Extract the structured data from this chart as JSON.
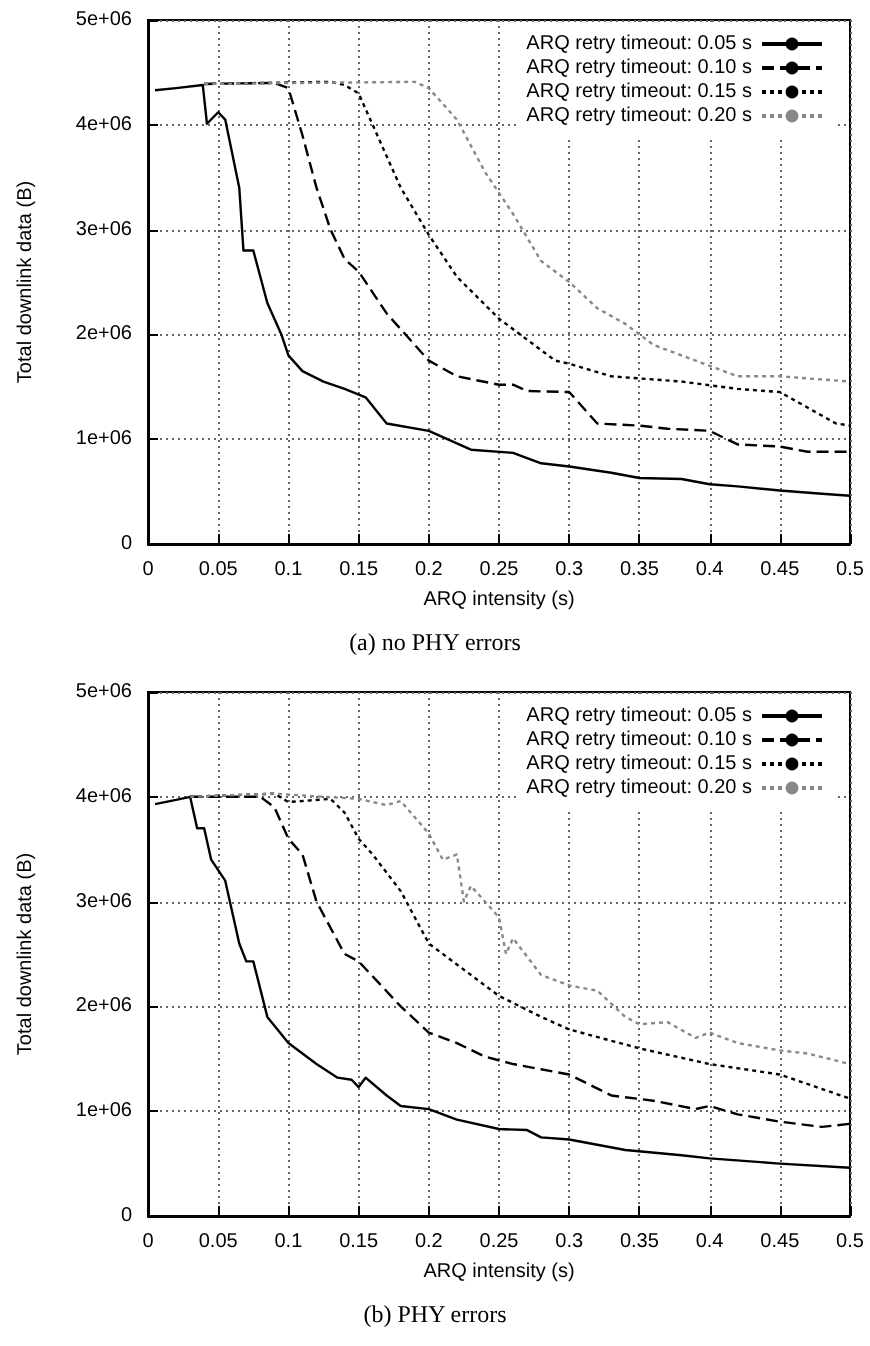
{
  "chart_data": [
    {
      "type": "line",
      "title": "(a) no PHY errors",
      "xlabel": "ARQ intensity (s)",
      "ylabel": "Total downlink data (B)",
      "legend": "top right",
      "grid": true,
      "marker": "none",
      "xlim": [
        0,
        0.5
      ],
      "xticks": [
        0,
        0.05,
        0.1,
        0.15,
        0.2,
        0.25,
        0.3,
        0.35,
        0.4,
        0.45,
        0.5
      ],
      "ylim": [
        0,
        5000000
      ],
      "yticks": [
        0,
        {
          "value": 1000000,
          "label": "1e+06"
        },
        {
          "value": 2000000,
          "label": "2e+06"
        },
        {
          "value": 3000000,
          "label": "3e+06"
        },
        {
          "value": 4000000,
          "label": "4e+06"
        },
        {
          "value": 5000000,
          "label": "5e+06"
        }
      ],
      "series": [
        {
          "name": "ARQ retry timeout: 0.05 s",
          "color": "#000000",
          "line_style": "solid",
          "x": [
            0.005,
            0.02,
            0.039,
            0.042,
            0.05,
            0.055,
            0.065,
            0.068,
            0.075,
            0.085,
            0.095,
            0.1,
            0.11,
            0.125,
            0.14,
            0.155,
            0.17,
            0.2,
            0.23,
            0.26,
            0.28,
            0.3,
            0.33,
            0.35,
            0.38,
            0.4,
            0.42,
            0.45,
            0.48,
            0.5
          ],
          "values": [
            4330000,
            4350000,
            4380000,
            4010000,
            4120000,
            4050000,
            3400000,
            2800000,
            2800000,
            2300000,
            2000000,
            1800000,
            1650000,
            1550000,
            1480000,
            1400000,
            1150000,
            1080000,
            900000,
            870000,
            770000,
            740000,
            680000,
            630000,
            620000,
            570000,
            550000,
            510000,
            480000,
            460000
          ]
        },
        {
          "name": "ARQ retry timeout: 0.10 s",
          "color": "#000000",
          "line_style": "dashed",
          "x": [
            0.04,
            0.09,
            0.1,
            0.11,
            0.12,
            0.13,
            0.14,
            0.15,
            0.17,
            0.2,
            0.22,
            0.25,
            0.26,
            0.27,
            0.3,
            0.32,
            0.35,
            0.37,
            0.4,
            0.42,
            0.45,
            0.47,
            0.5
          ],
          "values": [
            4390000,
            4400000,
            4350000,
            3900000,
            3400000,
            3000000,
            2720000,
            2600000,
            2200000,
            1750000,
            1600000,
            1520000,
            1520000,
            1460000,
            1450000,
            1150000,
            1130000,
            1100000,
            1080000,
            950000,
            930000,
            880000,
            880000
          ]
        },
        {
          "name": "ARQ retry timeout: 0.15 s",
          "color": "#000000",
          "line_style": "dotted",
          "x": [
            0.04,
            0.13,
            0.14,
            0.15,
            0.16,
            0.18,
            0.2,
            0.22,
            0.25,
            0.27,
            0.29,
            0.3,
            0.33,
            0.38,
            0.42,
            0.45,
            0.47,
            0.49,
            0.5
          ],
          "values": [
            4390000,
            4410000,
            4380000,
            4300000,
            4000000,
            3400000,
            2950000,
            2550000,
            2150000,
            1950000,
            1750000,
            1720000,
            1600000,
            1550000,
            1480000,
            1450000,
            1300000,
            1150000,
            1130000
          ]
        },
        {
          "name": "ARQ retry timeout: 0.20 s",
          "color": "#888888",
          "line_style": "dotted",
          "x": [
            0.04,
            0.19,
            0.2,
            0.22,
            0.24,
            0.26,
            0.28,
            0.3,
            0.32,
            0.34,
            0.36,
            0.38,
            0.4,
            0.42,
            0.45,
            0.5
          ],
          "values": [
            4390000,
            4410000,
            4350000,
            4050000,
            3550000,
            3150000,
            2700000,
            2500000,
            2250000,
            2100000,
            1900000,
            1800000,
            1700000,
            1600000,
            1600000,
            1550000
          ]
        }
      ]
    },
    {
      "type": "line",
      "title": "(b) PHY errors",
      "xlabel": "ARQ intensity (s)",
      "ylabel": "Total downlink data (B)",
      "legend": "top right",
      "grid": true,
      "marker": "none",
      "xlim": [
        0,
        0.5
      ],
      "xticks": [
        0,
        0.05,
        0.1,
        0.15,
        0.2,
        0.25,
        0.3,
        0.35,
        0.4,
        0.45,
        0.5
      ],
      "ylim": [
        0,
        5000000
      ],
      "yticks": [
        0,
        {
          "value": 1000000,
          "label": "1e+06"
        },
        {
          "value": 2000000,
          "label": "2e+06"
        },
        {
          "value": 3000000,
          "label": "3e+06"
        },
        {
          "value": 4000000,
          "label": "4e+06"
        },
        {
          "value": 5000000,
          "label": "5e+06"
        }
      ],
      "series": [
        {
          "name": "ARQ retry timeout: 0.05 s",
          "color": "#000000",
          "line_style": "solid",
          "x": [
            0.005,
            0.02,
            0.03,
            0.035,
            0.04,
            0.045,
            0.055,
            0.065,
            0.07,
            0.075,
            0.085,
            0.1,
            0.12,
            0.135,
            0.145,
            0.15,
            0.155,
            0.17,
            0.18,
            0.2,
            0.22,
            0.25,
            0.27,
            0.28,
            0.3,
            0.34,
            0.38,
            0.4,
            0.45,
            0.5
          ],
          "values": [
            3930000,
            3970000,
            4000000,
            3700000,
            3700000,
            3400000,
            3200000,
            2600000,
            2430000,
            2430000,
            1900000,
            1650000,
            1450000,
            1320000,
            1300000,
            1230000,
            1320000,
            1150000,
            1050000,
            1020000,
            920000,
            830000,
            820000,
            750000,
            730000,
            630000,
            580000,
            550000,
            500000,
            460000
          ]
        },
        {
          "name": "ARQ retry timeout: 0.10 s",
          "color": "#000000",
          "line_style": "dashed",
          "x": [
            0.03,
            0.08,
            0.09,
            0.1,
            0.11,
            0.12,
            0.14,
            0.15,
            0.18,
            0.2,
            0.22,
            0.24,
            0.26,
            0.28,
            0.3,
            0.33,
            0.36,
            0.39,
            0.4,
            0.42,
            0.45,
            0.48,
            0.5
          ],
          "values": [
            4000000,
            4000000,
            3900000,
            3600000,
            3450000,
            3000000,
            2500000,
            2430000,
            2000000,
            1750000,
            1650000,
            1520000,
            1450000,
            1400000,
            1350000,
            1150000,
            1100000,
            1020000,
            1050000,
            970000,
            900000,
            850000,
            880000
          ]
        },
        {
          "name": "ARQ retry timeout: 0.15 s",
          "color": "#000000",
          "line_style": "dotted",
          "x": [
            0.03,
            0.09,
            0.1,
            0.13,
            0.14,
            0.15,
            0.16,
            0.18,
            0.2,
            0.22,
            0.25,
            0.28,
            0.3,
            0.35,
            0.4,
            0.45,
            0.5
          ],
          "values": [
            4000000,
            4030000,
            3950000,
            3980000,
            3850000,
            3600000,
            3450000,
            3100000,
            2600000,
            2400000,
            2100000,
            1900000,
            1780000,
            1600000,
            1450000,
            1350000,
            1120000
          ]
        },
        {
          "name": "ARQ retry timeout: 0.20 s",
          "color": "#888888",
          "line_style": "dotted",
          "x": [
            0.03,
            0.09,
            0.15,
            0.17,
            0.18,
            0.2,
            0.21,
            0.22,
            0.225,
            0.23,
            0.25,
            0.255,
            0.26,
            0.28,
            0.3,
            0.32,
            0.34,
            0.35,
            0.37,
            0.39,
            0.4,
            0.42,
            0.45,
            0.47,
            0.5
          ],
          "values": [
            4000000,
            4030000,
            3980000,
            3920000,
            3960000,
            3650000,
            3400000,
            3450000,
            3000000,
            3150000,
            2850000,
            2500000,
            2650000,
            2300000,
            2200000,
            2150000,
            1900000,
            1830000,
            1850000,
            1700000,
            1750000,
            1650000,
            1580000,
            1550000,
            1450000
          ]
        }
      ]
    }
  ]
}
